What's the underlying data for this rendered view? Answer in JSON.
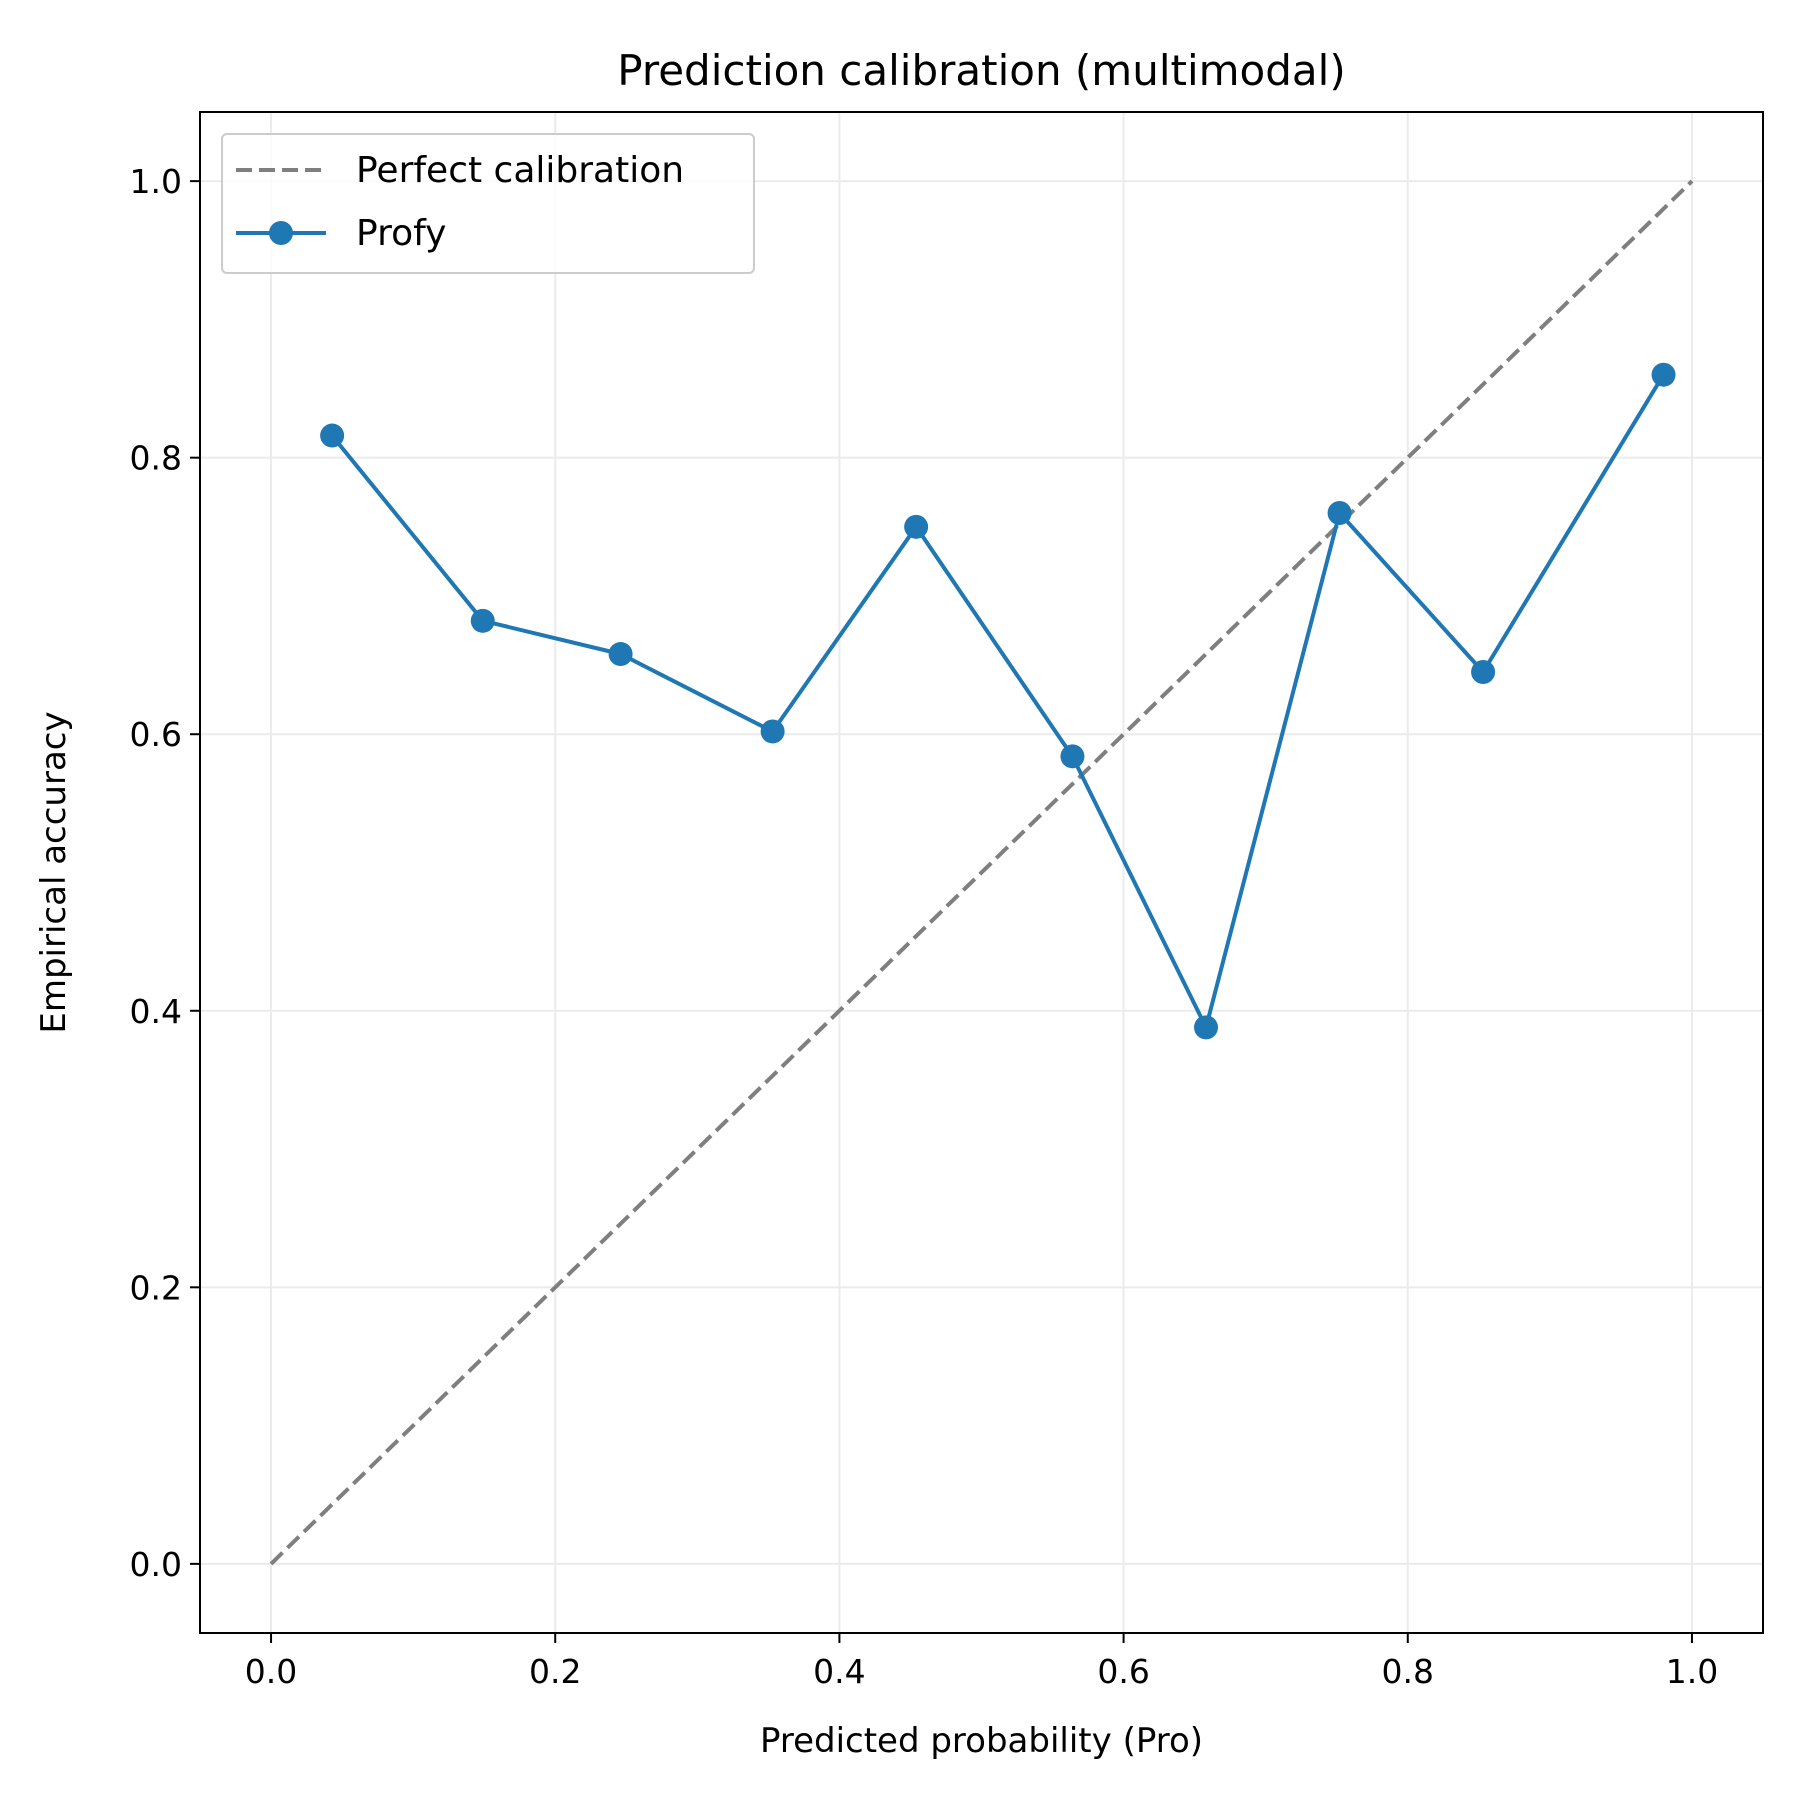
{
  "chart_data": {
    "type": "line",
    "title": "Prediction calibration (multimodal)",
    "xlabel": "Predicted probability (Pro)",
    "ylabel": "Empirical accuracy",
    "xlim": [
      -0.05,
      1.05
    ],
    "ylim": [
      -0.05,
      1.05
    ],
    "xticks": [
      0.0,
      0.2,
      0.4,
      0.6,
      0.8,
      1.0
    ],
    "yticks": [
      0.0,
      0.2,
      0.4,
      0.6,
      0.8,
      1.0
    ],
    "xtick_labels": [
      "0.0",
      "0.2",
      "0.4",
      "0.6",
      "0.8",
      "1.0"
    ],
    "ytick_labels": [
      "0.0",
      "0.2",
      "0.4",
      "0.6",
      "0.8",
      "1.0"
    ],
    "grid": true,
    "legend_position": "top-left",
    "series": [
      {
        "name": "Perfect calibration",
        "style": "dashed",
        "color": "#7f7f7f",
        "markers": false,
        "x": [
          0.0,
          1.0
        ],
        "y": [
          0.0,
          1.0
        ]
      },
      {
        "name": "Profy",
        "style": "solid",
        "color": "#1f77b4",
        "markers": true,
        "x": [
          0.043,
          0.149,
          0.246,
          0.353,
          0.454,
          0.564,
          0.658,
          0.752,
          0.853,
          0.98
        ],
        "y": [
          0.816,
          0.682,
          0.658,
          0.602,
          0.75,
          0.584,
          0.388,
          0.76,
          0.645,
          0.86
        ]
      }
    ]
  }
}
